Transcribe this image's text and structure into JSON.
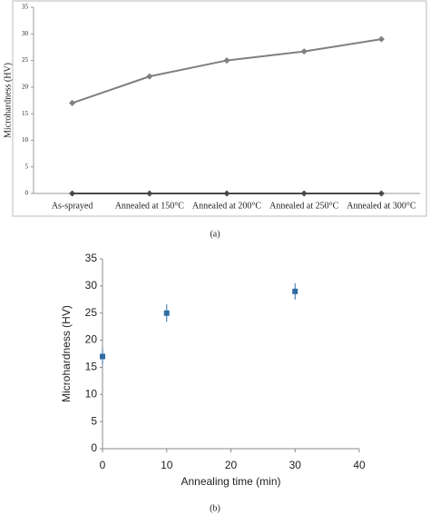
{
  "chart_data": [
    {
      "type": "line",
      "caption": "(a)",
      "y_label": "Microhardness (HV)",
      "categories": [
        "As-sprayed",
        "Annealed at 150°C",
        "Annealed at 200°C",
        "Annealed at 250°C",
        "Annealed at 300°C"
      ],
      "series": [
        {
          "color": "#7f7f7f",
          "values": [
            17,
            22,
            25,
            26.7,
            29
          ],
          "errors": [
            0.3,
            0.4,
            0.3,
            0.3,
            0.3
          ]
        },
        {
          "color": "#4a4a4a",
          "values": [
            0,
            0,
            0,
            0,
            0
          ]
        }
      ],
      "ylim": [
        0,
        35
      ],
      "yticks": [
        0,
        5,
        10,
        15,
        20,
        25,
        30,
        35
      ],
      "grid": false
    },
    {
      "type": "scatter",
      "caption": "(b)",
      "x_label": "Annealing time (min)",
      "y_label": "Microhardness (HV)",
      "x": [
        0,
        10,
        30
      ],
      "series": [
        {
          "color": "#2e6ca4",
          "values": [
            17,
            25,
            29
          ],
          "errors": [
            1.5,
            1.6,
            1.5
          ]
        }
      ],
      "xlim": [
        0,
        40
      ],
      "xticks": [
        0,
        10,
        20,
        30,
        40
      ],
      "ylim": [
        0,
        35
      ],
      "yticks": [
        0,
        5,
        10,
        15,
        20,
        25,
        30,
        35
      ],
      "grid": false
    }
  ]
}
